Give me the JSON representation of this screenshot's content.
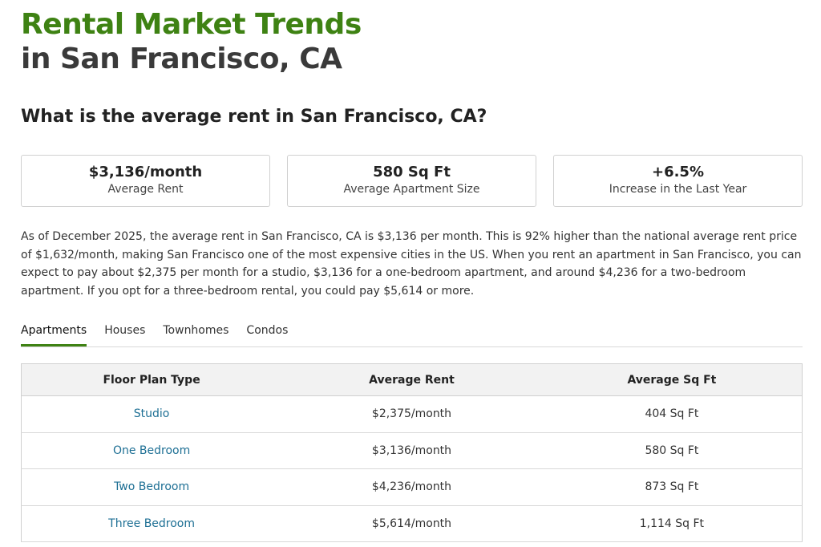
{
  "header": {
    "title_line1": "Rental Market Trends",
    "title_line2": "in San Francisco, CA"
  },
  "question": "What is the average rent in San Francisco, CA?",
  "stats": [
    {
      "value": "$3,136/month",
      "label": "Average Rent"
    },
    {
      "value": "580 Sq Ft",
      "label": "Average Apartment Size"
    },
    {
      "value": "+6.5%",
      "label": "Increase in the Last Year"
    }
  ],
  "paragraph": "As of December 2025, the average rent in San Francisco, CA is $3,136 per month. This is 92% higher than the national average rent price of $1,632/month, making San Francisco one of the most expensive cities in the US. When you rent an apartment in San Francisco, you can expect to pay about $2,375 per month for a studio, $3,136 for a one-bedroom apartment, and around $4,236 for a two-bedroom apartment. If you opt for a three-bedroom rental, you could pay $5,614 or more.",
  "tabs": [
    "Apartments",
    "Houses",
    "Townhomes",
    "Condos"
  ],
  "table": {
    "headers": [
      "Floor Plan Type",
      "Average Rent",
      "Average Sq Ft"
    ],
    "rows": [
      [
        "Studio",
        "$2,375/month",
        "404 Sq Ft"
      ],
      [
        "One Bedroom",
        "$3,136/month",
        "580 Sq Ft"
      ],
      [
        "Two Bedroom",
        "$4,236/month",
        "873 Sq Ft"
      ],
      [
        "Three Bedroom",
        "$5,614/month",
        "1,114 Sq Ft"
      ]
    ]
  }
}
